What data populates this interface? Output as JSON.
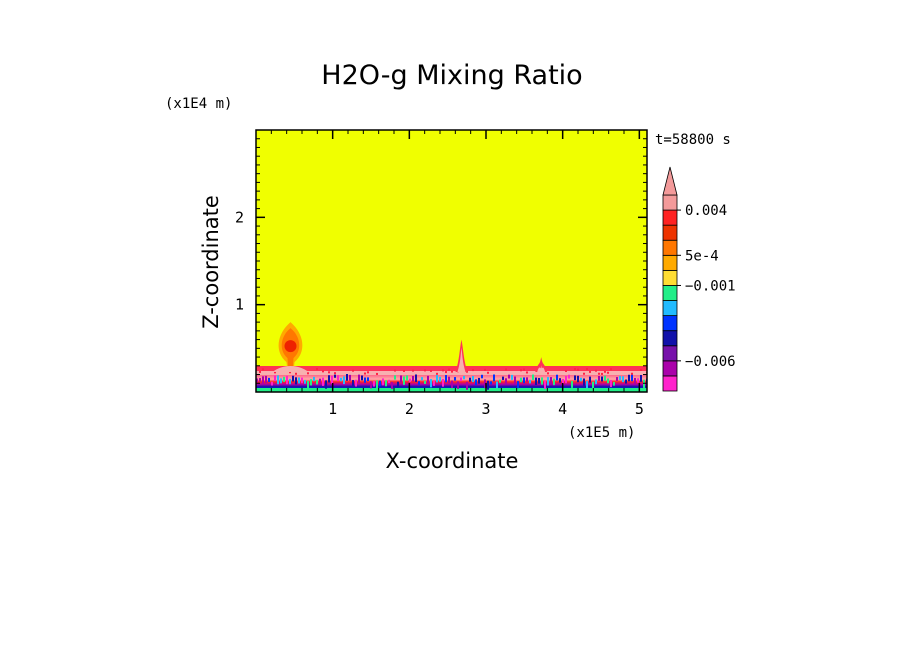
{
  "chart_data": {
    "type": "heatmap",
    "title": "H2O-g Mixing Ratio",
    "xlabel": "X-coordinate",
    "ylabel": "Z-coordinate",
    "x_unit": "(x1E5 m)",
    "y_unit": "(x1E4 m)",
    "time_label": "t=58800 s",
    "xlim": [
      0,
      5.1
    ],
    "ylim": [
      0,
      3.0
    ],
    "x_ticks": [
      1,
      2,
      3,
      4,
      5
    ],
    "y_ticks": [
      1,
      2
    ],
    "background_color": "#f0ff00",
    "colorbar": {
      "colors": [
        "#ff22cc",
        "#aa00aa",
        "#7711aa",
        "#1111aa",
        "#0033ff",
        "#22bbff",
        "#22ee88",
        "#ffdd33",
        "#ffaa00",
        "#ff7700",
        "#ee3300",
        "#ff2222",
        "#f39a9a"
      ],
      "labels": [
        {
          "text": "0.004",
          "level": 0.004
        },
        {
          "text": "5e-4",
          "level": 0.0005
        },
        {
          "text": "−0.001",
          "level": -0.001
        },
        {
          "text": "−0.006",
          "level": -0.006
        }
      ],
      "extend_top": true
    },
    "features": [
      {
        "name": "plume",
        "x": 0.45,
        "z_top": 0.8
      },
      {
        "name": "spike",
        "x": 2.68,
        "z_top": 0.6
      },
      {
        "name": "spike",
        "x": 3.72,
        "z_top": 0.4
      }
    ]
  }
}
